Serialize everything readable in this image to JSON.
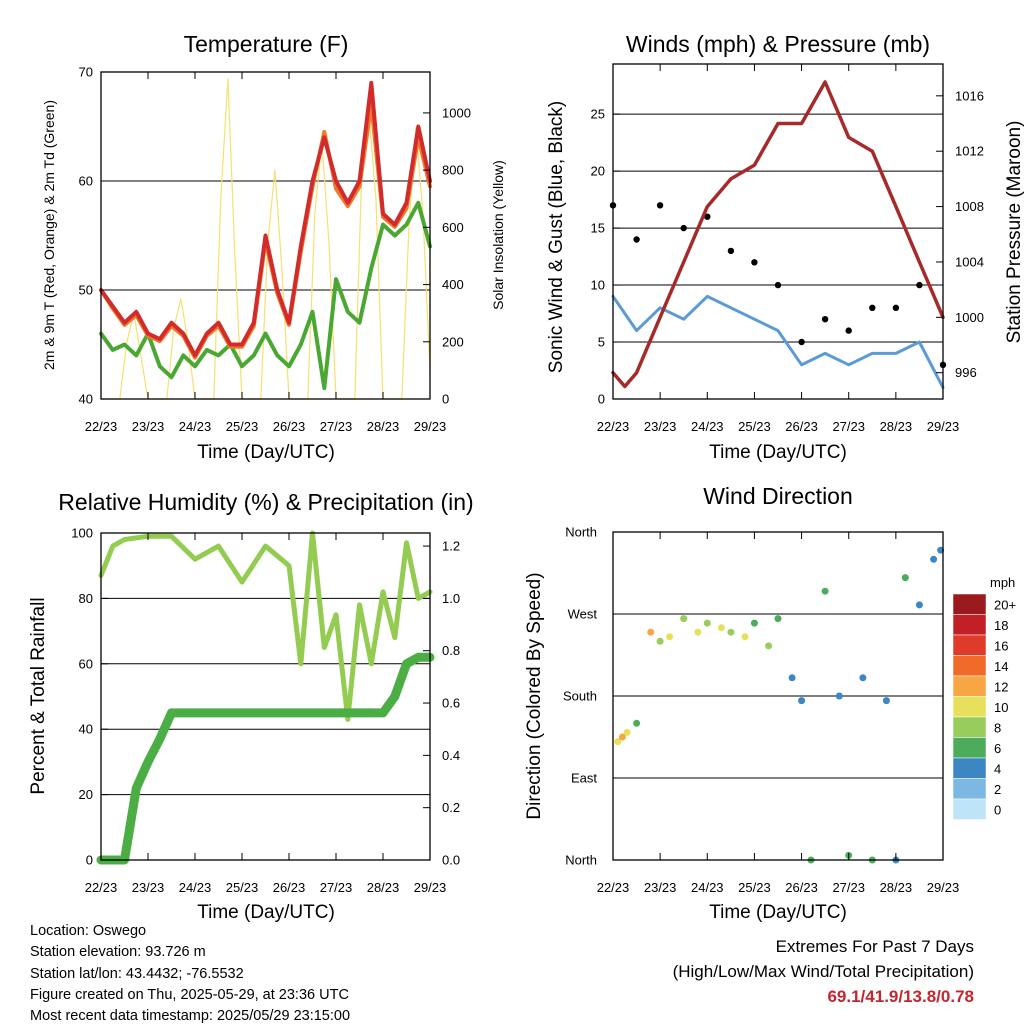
{
  "chart_data": [
    {
      "type": "line",
      "title": "Temperature (F)",
      "xlabel": "Time (Day/UTC)",
      "ylabel": "2m & 9m T (Red, Orange) & 2m Td (Green)",
      "y2label": "Solar Insolation (Yellow)",
      "xticks": [
        "22/23",
        "23/23",
        "24/23",
        "25/23",
        "26/23",
        "27/23",
        "28/23",
        "29/23"
      ],
      "ylim": [
        40,
        70
      ],
      "yticks": [
        40,
        50,
        60,
        70
      ],
      "y2lim": [
        0,
        1143
      ],
      "y2ticks": [
        0,
        200,
        400,
        600,
        800,
        1000
      ],
      "grid": "y",
      "series": [
        {
          "color": "#d22b2b",
          "days": [
            0,
            0.25,
            0.5,
            0.75,
            1,
            1.25,
            1.5,
            1.75,
            2,
            2.25,
            2.5,
            2.75,
            3,
            3.25,
            3.5,
            3.75,
            4,
            4.25,
            4.5,
            4.75,
            5,
            5.25,
            5.5,
            5.75,
            6,
            6.25,
            6.5,
            6.75,
            7
          ],
          "values": [
            50,
            48.5,
            47,
            48,
            46,
            45.5,
            47,
            46,
            44,
            46,
            47,
            45,
            45,
            47,
            55,
            50,
            47,
            54,
            60,
            64,
            60,
            58,
            60,
            69,
            57,
            56,
            58,
            65,
            60
          ]
        },
        {
          "color": "#f07828",
          "days": [
            0,
            0.25,
            0.5,
            0.75,
            1,
            1.25,
            1.5,
            1.75,
            2,
            2.25,
            2.5,
            2.75,
            3,
            3.25,
            3.5,
            3.75,
            4,
            4.25,
            4.5,
            4.75,
            5,
            5.25,
            5.5,
            5.75,
            6,
            6.25,
            6.5,
            6.75,
            7
          ],
          "values": [
            50,
            48.3,
            46.8,
            47.7,
            45.8,
            45.3,
            46.7,
            45.8,
            43.8,
            45.8,
            46.7,
            44.8,
            44.8,
            46.7,
            54.5,
            49.7,
            46.8,
            53.5,
            59.5,
            64.5,
            59.3,
            57.7,
            59.5,
            67,
            56.7,
            55.8,
            57.5,
            64,
            59.5
          ]
        },
        {
          "color": "#4aa832",
          "days": [
            0,
            0.25,
            0.5,
            0.75,
            1,
            1.25,
            1.5,
            1.75,
            2,
            2.25,
            2.5,
            2.75,
            3,
            3.25,
            3.5,
            3.75,
            4,
            4.25,
            4.5,
            4.75,
            5,
            5.25,
            5.5,
            5.75,
            6,
            6.25,
            6.5,
            6.75,
            7
          ],
          "values": [
            46,
            44.5,
            45,
            44,
            46,
            43,
            42,
            44,
            43,
            44.5,
            44,
            45,
            43,
            44,
            46,
            44,
            43,
            45,
            48,
            41,
            51,
            48,
            47,
            52,
            56,
            55,
            56,
            58,
            54
          ]
        },
        {
          "color": "#f5e070",
          "days": [
            0,
            0.4,
            0.55,
            0.7,
            0.85,
            1,
            1.4,
            1.55,
            1.7,
            1.85,
            2,
            2.4,
            2.55,
            2.7,
            2.85,
            3,
            3.4,
            3.55,
            3.7,
            3.85,
            4,
            4.4,
            4.55,
            4.7,
            4.85,
            5,
            5.4,
            5.55,
            5.7,
            5.85,
            6,
            6.4,
            6.55,
            6.7,
            6.85,
            7
          ],
          "values": [
            0,
            0,
            200,
            300,
            150,
            0,
            0,
            250,
            350,
            200,
            0,
            0,
            700,
            1120,
            500,
            0,
            0,
            550,
            800,
            450,
            0,
            0,
            650,
            900,
            550,
            0,
            0,
            800,
            1000,
            700,
            0,
            0,
            600,
            950,
            650,
            100
          ]
        }
      ]
    },
    {
      "type": "scatter",
      "title": "Winds (mph) & Pressure (mb)",
      "xlabel": "Time (Day/UTC)",
      "ylabel": "Sonic Wind & Gust (Blue, Black)",
      "y2label": "Station Pressure (Maroon)",
      "xticks": [
        "22/23",
        "23/23",
        "24/23",
        "25/23",
        "26/23",
        "27/23",
        "28/23",
        "29/23"
      ],
      "ylim": [
        0,
        29.4
      ],
      "yticks": [
        0,
        5,
        10,
        15,
        20,
        25
      ],
      "y2lim": [
        994.1,
        1018.3
      ],
      "y2ticks": [
        996,
        1000,
        1004,
        1008,
        1012,
        1016
      ],
      "grid": "y",
      "series": [
        {
          "name": "",
          "color": "#5b9bd5",
          "days": [
            0,
            0.5,
            1,
            1.5,
            2,
            2.5,
            3,
            3.5,
            4,
            4.5,
            5,
            5.5,
            6,
            6.5,
            7
          ],
          "values": [
            9,
            6,
            8,
            7,
            9,
            8,
            7,
            6,
            3,
            4,
            3,
            4,
            4,
            5,
            1
          ]
        },
        {
          "name": "",
          "color": "#000000",
          "days": [
            0,
            0.5,
            1,
            1.5,
            2,
            2.5,
            3,
            3.5,
            4,
            4.5,
            5,
            5.5,
            6,
            6.5,
            7
          ],
          "values": [
            17,
            14,
            17,
            15,
            16,
            13,
            12,
            10,
            5,
            7,
            6,
            8,
            8,
            10,
            3
          ]
        },
        {
          "name": "",
          "color": "#a52a2a",
          "days": [
            0,
            0.25,
            0.5,
            1,
            1.5,
            2,
            2.5,
            3,
            3.5,
            4,
            4.5,
            5,
            5.5,
            6,
            6.5,
            6.75,
            7
          ],
          "values": [
            996,
            995,
            996,
            1000,
            1004,
            1008,
            1010,
            1011,
            1014,
            1014,
            1017,
            1013,
            1012,
            1008,
            1004,
            1002,
            1000
          ]
        }
      ]
    },
    {
      "type": "line",
      "title": "Relative Humidity (%) & Precipitation (in)",
      "xlabel": "Time (Day/UTC)",
      "ylabel": "Percent & Total Rainfall",
      "xticks": [
        "22/23",
        "23/23",
        "24/23",
        "25/23",
        "26/23",
        "27/23",
        "28/23",
        "29/23"
      ],
      "ylim": [
        0,
        100
      ],
      "yticks": [
        0,
        20,
        40,
        60,
        80,
        100
      ],
      "y2lim": [
        0,
        1.25
      ],
      "y2ticks": [
        "0.0",
        "0.2",
        "0.4",
        "0.6",
        "0.8",
        "1.0",
        "1.2"
      ],
      "grid": "y",
      "series": [
        {
          "color": "#93cc50",
          "days": [
            0,
            0.25,
            0.5,
            1,
            1.5,
            2,
            2.5,
            3,
            3.5,
            4,
            4.25,
            4.5,
            4.75,
            5,
            5.25,
            5.5,
            5.75,
            6,
            6.25,
            6.5,
            6.75,
            7
          ],
          "values": [
            87,
            96,
            98,
            99,
            99,
            92,
            96,
            85,
            96,
            90,
            60,
            100,
            65,
            75,
            43,
            78,
            60,
            82,
            68,
            97,
            80,
            82
          ]
        },
        {
          "color": "#4aae44",
          "days": [
            0,
            0.5,
            0.75,
            1,
            1.25,
            1.5,
            2,
            3,
            4,
            5,
            6,
            6.25,
            6.5,
            6.75,
            7
          ],
          "values": [
            0,
            0,
            22,
            30,
            37,
            45,
            45,
            45,
            45,
            45,
            45,
            50,
            60,
            62,
            62
          ]
        }
      ]
    },
    {
      "type": "scatter",
      "title": "Wind Direction",
      "xlabel": "Time (Day/UTC)",
      "ylabel": "Direction (Colored By Speed)",
      "xticks": [
        "22/23",
        "23/23",
        "24/23",
        "25/23",
        "26/23",
        "27/23",
        "28/23",
        "29/23"
      ],
      "yticks": [
        "North",
        "East",
        "South",
        "West",
        "North"
      ],
      "ylim": [
        0,
        360
      ],
      "legend": {
        "title": "mph",
        "labels": [
          "20+",
          "18",
          "16",
          "14",
          "12",
          "10",
          "8",
          "6",
          "4",
          "2",
          "0"
        ],
        "colors": [
          "#9a1a1e",
          "#c12026",
          "#e03a2a",
          "#f06a2a",
          "#f8a544",
          "#e8e05c",
          "#98cc5c",
          "#4cac5c",
          "#3c86c4",
          "#7db8e4",
          "#bee4f8"
        ]
      },
      "points": {
        "days": [
          0.1,
          0.2,
          0.3,
          0.5,
          0.8,
          1,
          1.2,
          1.5,
          1.8,
          2,
          2.3,
          2.5,
          2.8,
          3,
          3.3,
          3.5,
          3.8,
          4,
          4.2,
          4.5,
          4.8,
          5,
          5.3,
          5.5,
          5.8,
          6,
          6.2,
          6.5,
          6.8,
          6.95
        ],
        "dirs": [
          130,
          135,
          140,
          150,
          250,
          240,
          245,
          265,
          250,
          260,
          255,
          250,
          245,
          260,
          235,
          265,
          200,
          175,
          0,
          295,
          180,
          5,
          200,
          0,
          175,
          0,
          310,
          280,
          330,
          340
        ],
        "speeds": [
          10,
          11,
          9,
          6,
          12,
          8,
          9,
          7,
          9,
          8,
          10,
          8,
          9,
          5,
          7,
          6,
          4,
          3,
          5,
          6,
          4,
          5,
          4,
          6,
          3,
          4,
          5,
          4,
          3,
          4
        ]
      }
    }
  ],
  "info": {
    "location": "Location: Oswego",
    "elevation": "Station elevation: 93.726 m",
    "latlon": "Station lat/lon: 43.4432; -76.5532",
    "created": "Figure created on Thu, 2025-05-29, at 23:36 UTC",
    "recent": "Most recent data timestamp: 2025/05/29 23:15:00"
  },
  "extremes": {
    "title": "Extremes For Past 7 Days",
    "subtitle": "(High/Low/Max Wind/Total Precipitation)",
    "values": "69.1/41.9/13.8/0.78"
  }
}
